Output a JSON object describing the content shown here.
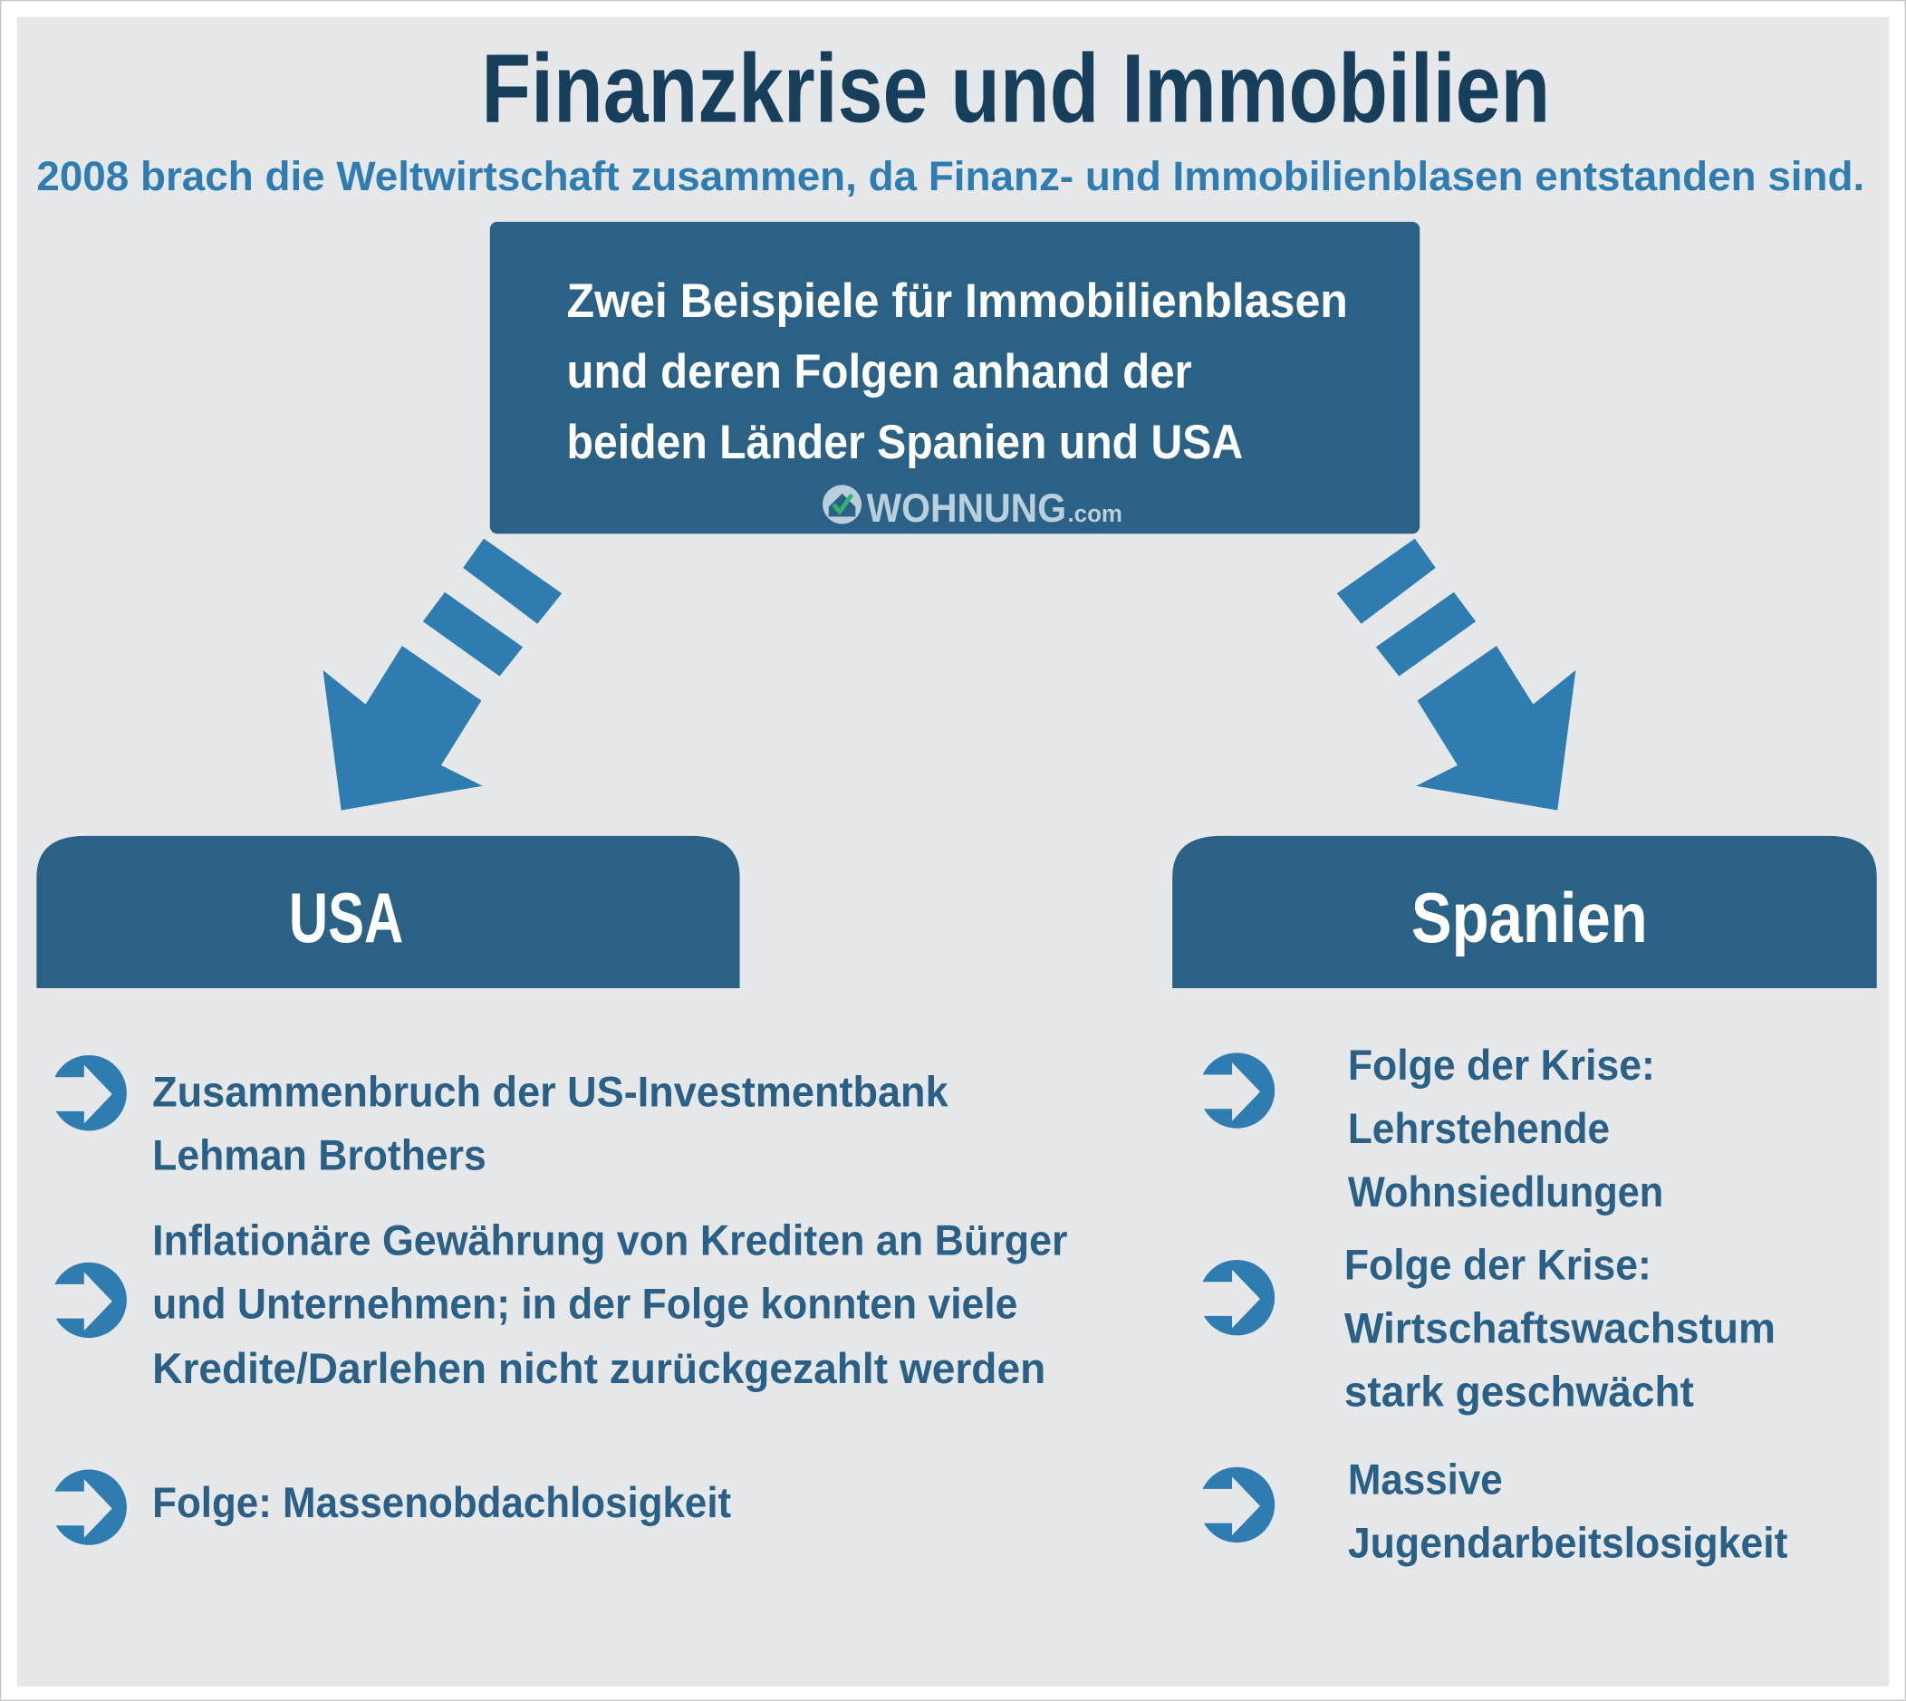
{
  "title": "Finanzkrise und Immobilien",
  "subtitle": "2008 brach die Weltwirtschaft zusammen, da Finanz- und Immobilienblasen entstanden sind.",
  "intro_box": {
    "lines": [
      "Zwei Beispiele für Immobilienblasen",
      "und deren Folgen anhand der",
      "beiden Länder Spanien und USA"
    ],
    "logo": {
      "brand": "WOHNUNG",
      "suffix": ".com",
      "icon": "house-check-icon"
    }
  },
  "columns": [
    {
      "heading": "USA",
      "items": [
        {
          "lines": [
            "Zusammenbruch der US-Investmentbank",
            "Lehman Brothers"
          ]
        },
        {
          "lines": [
            "Inflationäre Gewährung von Krediten an Bürger",
            "und Unternehmen; in der Folge konnten viele",
            "Kredite/Darlehen nicht zurückgezahlt werden"
          ]
        },
        {
          "lines": [
            "Folge: Massenobdachlosigkeit"
          ]
        }
      ]
    },
    {
      "heading": "Spanien",
      "items": [
        {
          "lines": [
            "Folge der Krise:",
            "Lehrstehende",
            "Wohnsiedlungen"
          ]
        },
        {
          "lines": [
            "Folge der Krise:",
            "Wirtschaftswachstum",
            "stark geschwächt"
          ]
        },
        {
          "lines": [
            "Massive",
            "Jugendarbeitslosigkeit"
          ]
        }
      ]
    }
  ],
  "colors": {
    "title": "#173f5c",
    "subtitle": "#2f7db0",
    "box": "#2a6185",
    "arrow": "#2f7db0",
    "bullet_text": "#2a5f86",
    "background": "#e6e7e8",
    "logo": "#b9cfdc",
    "logo_check": "#2eb56a"
  },
  "icons": {
    "bullet": "arrow-circle-right-icon",
    "connector": "dashed-arrow-down-icon"
  }
}
